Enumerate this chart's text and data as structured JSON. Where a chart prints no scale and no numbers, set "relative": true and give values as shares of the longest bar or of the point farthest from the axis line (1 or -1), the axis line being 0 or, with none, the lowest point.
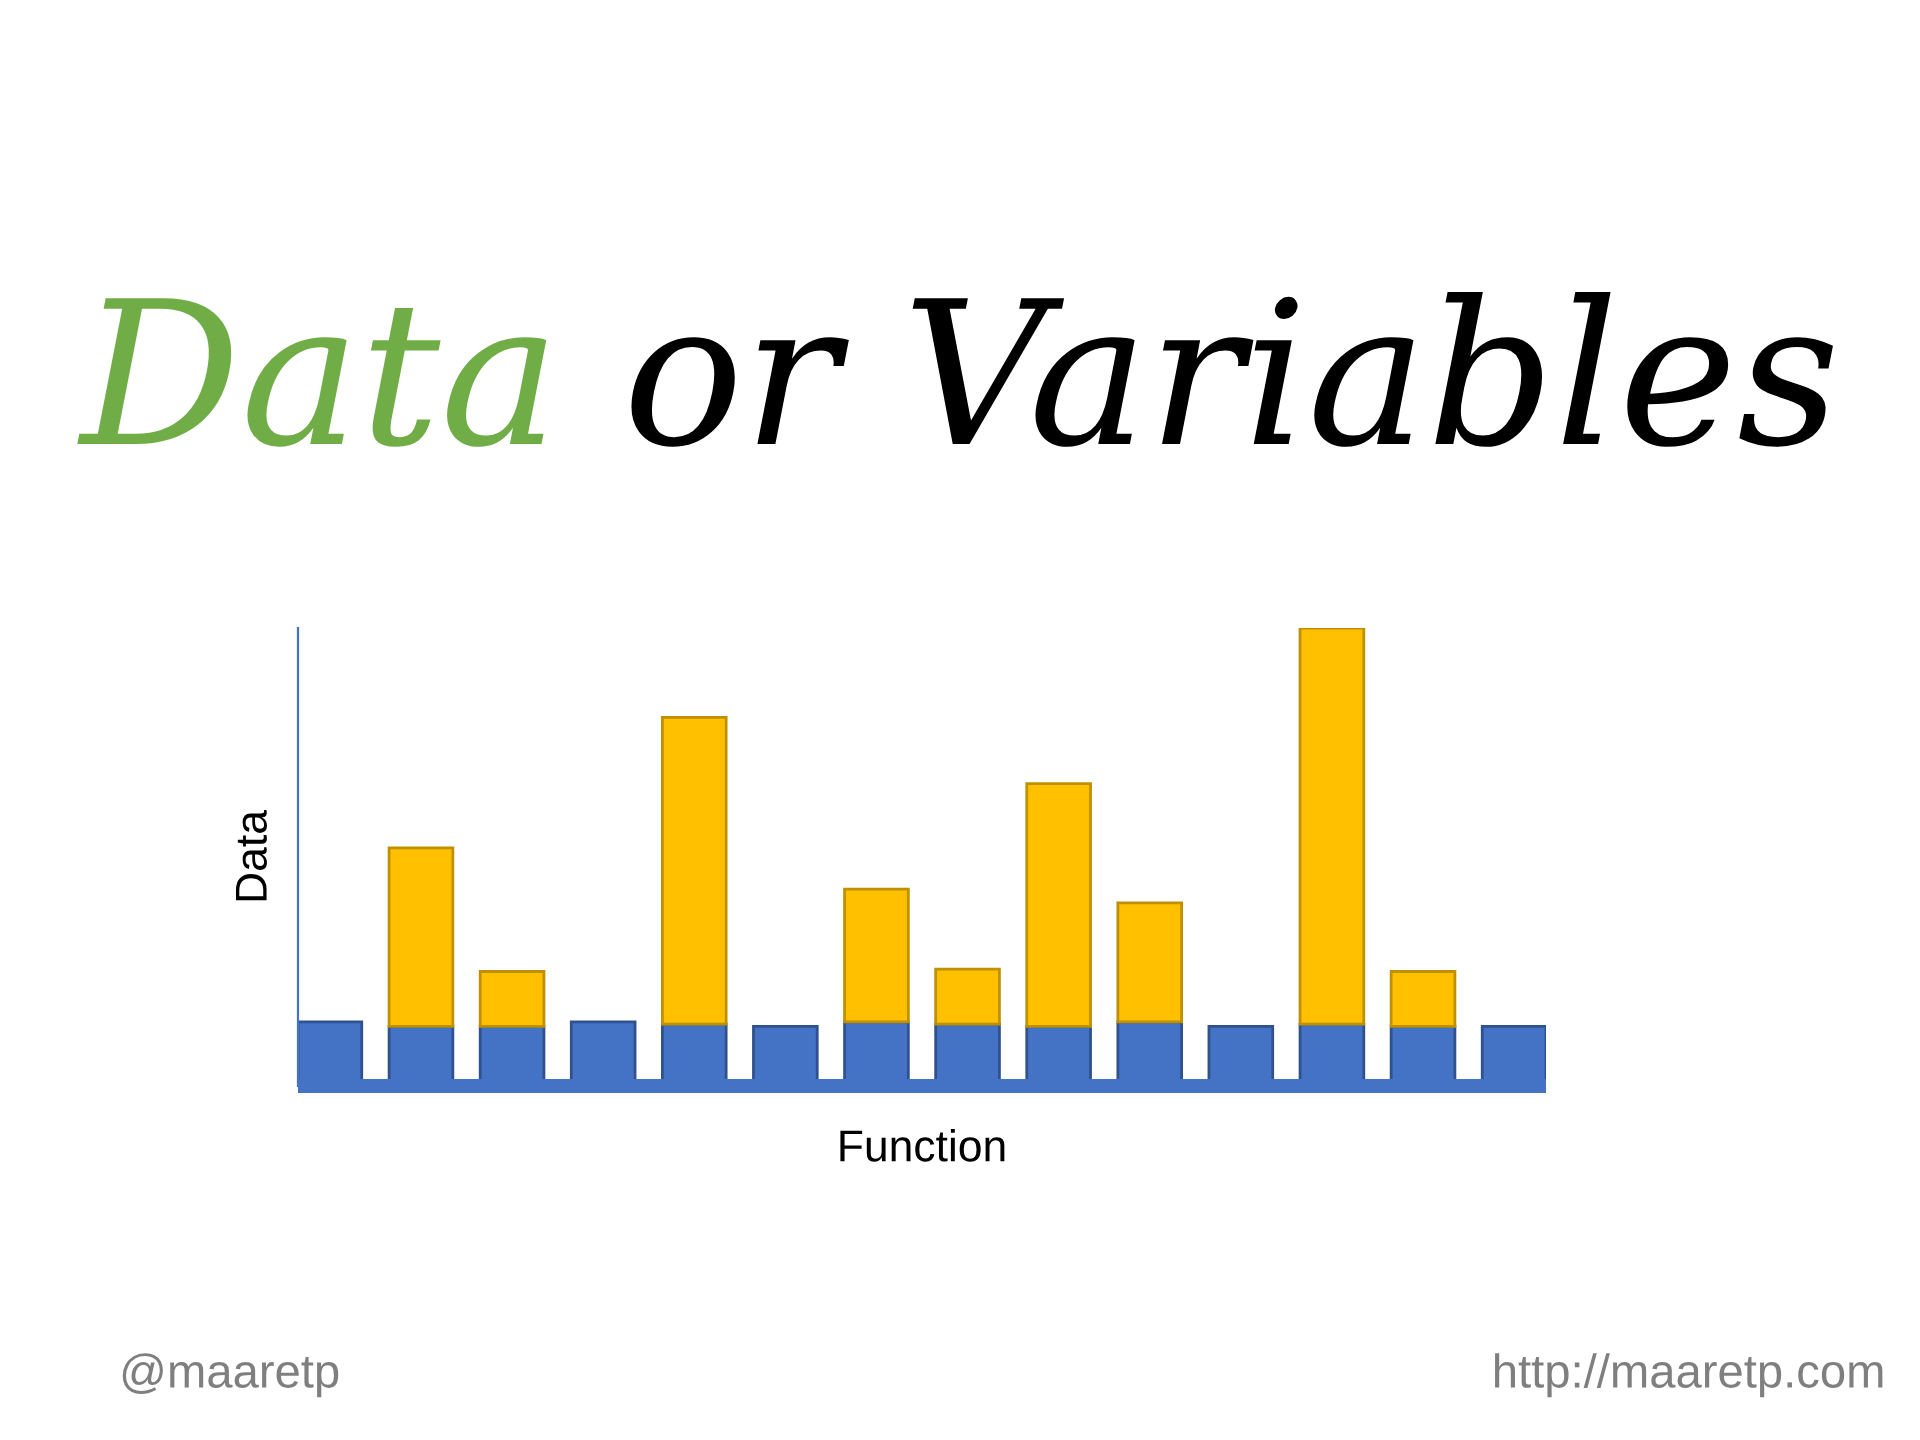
{
  "chart_data": {
    "type": "bar",
    "title": "Data or Variables",
    "xlabel": "Function",
    "ylabel": "Data",
    "relative": true,
    "stacked": true,
    "categories": [
      null,
      null,
      null,
      null,
      null,
      null,
      null,
      null,
      null,
      null,
      null,
      null,
      null,
      null
    ],
    "series": [
      {
        "color": "#4472c4",
        "values": [
          0.14,
          0.13,
          0.13,
          0.14,
          0.135,
          0.13,
          0.14,
          0.135,
          0.13,
          0.14,
          0.13,
          0.135,
          0.13,
          0.13
        ]
      },
      {
        "color": "#ffc000",
        "values": [
          null,
          0.39,
          0.12,
          null,
          0.67,
          null,
          0.29,
          0.12,
          0.53,
          0.26,
          null,
          0.865,
          0.12,
          null
        ]
      }
    ],
    "annotations": [
      "@maaretp",
      "http://maaretp.com"
    ],
    "grid": false,
    "legend": false
  }
}
